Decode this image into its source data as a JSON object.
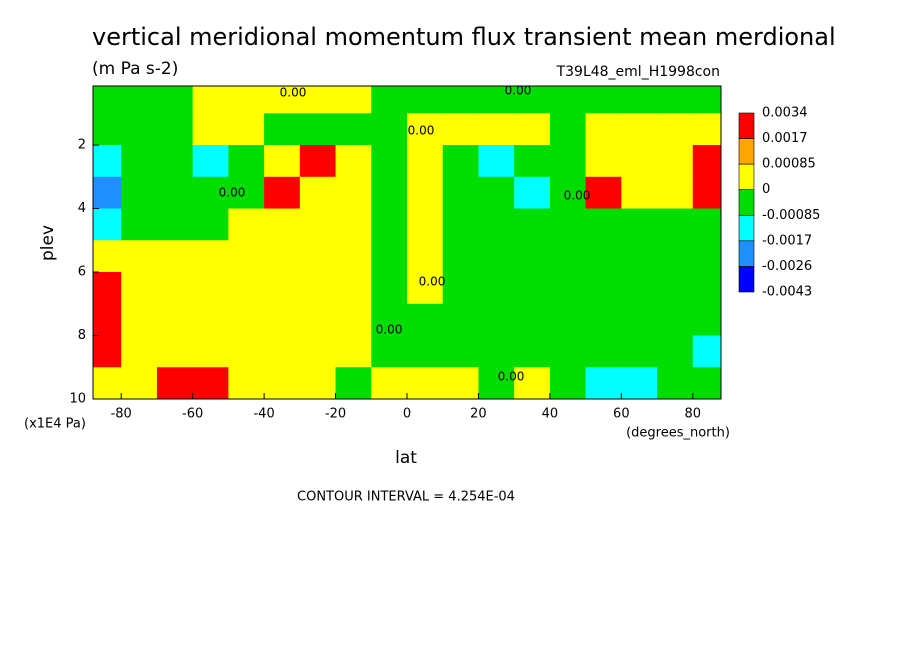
{
  "chart_data": {
    "type": "contour",
    "title": "vertical meridional momentum flux transient mean merdional",
    "subtitle": "(m Pa s-2)",
    "run_label": "T39L48_eml_H1998con",
    "xlabel": "lat",
    "ylabel": "plev",
    "xunit": "(degrees_north)",
    "yunit": "(x1E4 Pa)",
    "footnote": "CONTOUR INTERVAL = 4.254E-04",
    "contour_labels": [
      "0.00",
      "0.00",
      "0.00",
      "0.00",
      "0.00",
      "0.00",
      "0.00",
      "0.00"
    ],
    "xlim": [
      -87.9,
      87.9
    ],
    "ylim": [
      10,
      0.14
    ],
    "xticks": [
      -80,
      -60,
      -40,
      -20,
      0,
      20,
      40,
      60,
      80
    ],
    "yticks": [
      2,
      4,
      6,
      8,
      10
    ],
    "x": [
      -85,
      -75,
      -65,
      -55,
      -45,
      -35,
      -25,
      -15,
      -5,
      5,
      15,
      25,
      35,
      45,
      55,
      65,
      75,
      85
    ],
    "y": [
      0.5,
      1.5,
      2.5,
      3.5,
      4.5,
      5.5,
      6.5,
      7.5,
      8.5,
      9.5
    ],
    "z": [
      [
        -0.0004,
        -0.0004,
        -0.0004,
        0.0004,
        0.0004,
        0.0004,
        0.0004,
        0.0004,
        -0.0004,
        -0.0004,
        -0.0004,
        -0.0004,
        -0.0004,
        -0.0004,
        -0.0004,
        -0.0004,
        -0.0004,
        -0.0004
      ],
      [
        -0.0004,
        -0.0004,
        -0.0004,
        0.0004,
        0.0004,
        -0.0004,
        -0.0004,
        -0.0004,
        -0.0004,
        0.0004,
        0.0004,
        0.0004,
        0.0004,
        -0.0004,
        0.0004,
        0.0004,
        0.0004,
        0.0004
      ],
      [
        -0.001,
        -0.0004,
        -0.0004,
        -0.001,
        -0.0004,
        0.0004,
        0.002,
        0.0004,
        -0.0004,
        0.0004,
        -0.0004,
        -0.001,
        -0.0004,
        -0.0004,
        0.0004,
        0.0004,
        0.0004,
        0.004
      ],
      [
        -0.002,
        -0.0004,
        -0.0004,
        -0.0004,
        -0.0004,
        0.002,
        0.0004,
        0.0004,
        -0.0004,
        0.0004,
        -0.0004,
        -0.0004,
        -0.001,
        -0.0004,
        0.002,
        0.0004,
        0.0004,
        0.002
      ],
      [
        -0.001,
        -0.0004,
        -0.0004,
        -0.0004,
        0.0004,
        0.0004,
        0.0004,
        0.0004,
        -0.0004,
        0.0004,
        -0.0004,
        -0.0004,
        -0.0004,
        -0.0004,
        -0.0004,
        -0.0004,
        -0.0004,
        -0.0004
      ],
      [
        0.0004,
        0.0004,
        0.0004,
        0.0004,
        0.0004,
        0.0004,
        0.0004,
        0.0004,
        -0.0004,
        0.0004,
        -0.0004,
        -0.0004,
        -0.0004,
        -0.0004,
        -0.0004,
        -0.0004,
        -0.0004,
        -0.0004
      ],
      [
        0.002,
        0.0004,
        0.0004,
        0.0004,
        0.0004,
        0.0004,
        0.0004,
        0.0004,
        -0.0004,
        0.0004,
        -0.0004,
        -0.0004,
        -0.0004,
        -0.0004,
        -0.0004,
        -0.0004,
        -0.0004,
        -0.0004
      ],
      [
        0.004,
        0.0004,
        0.0004,
        0.0004,
        0.0004,
        0.0004,
        0.0004,
        0.0004,
        -0.0004,
        -0.0004,
        -0.0004,
        -0.0004,
        -0.0004,
        -0.0004,
        -0.0004,
        -0.0004,
        -0.0004,
        -0.0004
      ],
      [
        0.002,
        0.0004,
        0.0004,
        0.0004,
        0.0004,
        0.0004,
        0.0004,
        0.0004,
        -0.0004,
        -0.0004,
        -0.0004,
        -0.0004,
        -0.0004,
        -0.0004,
        -0.0004,
        -0.0004,
        -0.0004,
        -0.001
      ],
      [
        0.0004,
        0.0004,
        0.002,
        0.002,
        0.0004,
        0.0004,
        0.0004,
        -0.0004,
        0.0004,
        0.0004,
        0.0004,
        -0.0004,
        0.0004,
        -0.0004,
        -0.001,
        -0.001,
        -0.0004,
        -0.0004
      ]
    ],
    "colorbar": {
      "levels": [
        0.0034,
        0.0017,
        0.00085,
        0,
        -0.00085,
        -0.0017,
        -0.0026,
        -0.0043
      ],
      "colors": [
        "#ff0000",
        "#ffa500",
        "#ffff00",
        "#00dd00",
        "#00ffff",
        "#1e90ff",
        "#0000ff"
      ]
    }
  }
}
